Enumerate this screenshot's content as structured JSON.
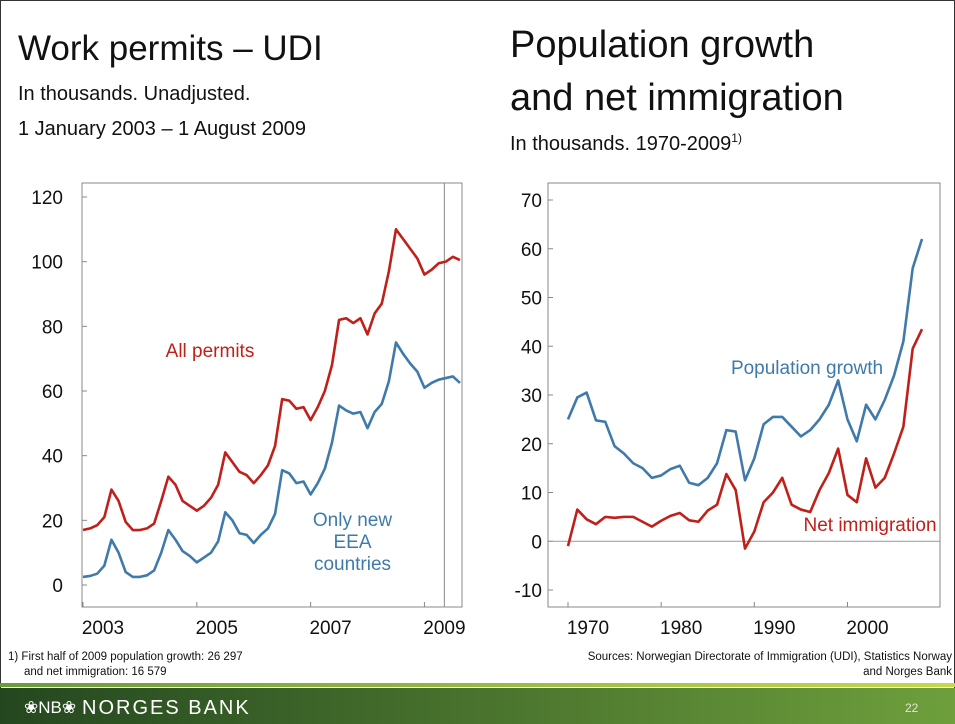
{
  "chart_data": [
    {
      "type": "line",
      "title": [
        "Work permits – UDI"
      ],
      "subtitle": [
        "In thousands. Unadjusted.",
        "1 January 2003 – 1 August 2009"
      ],
      "x": [
        2003,
        2003.125,
        2003.25,
        2003.375,
        2003.5,
        2003.625,
        2003.75,
        2003.875,
        2004,
        2004.125,
        2004.25,
        2004.375,
        2004.5,
        2004.625,
        2004.75,
        2004.875,
        2005,
        2005.125,
        2005.25,
        2005.375,
        2005.5,
        2005.625,
        2005.75,
        2005.875,
        2006,
        2006.125,
        2006.25,
        2006.375,
        2006.5,
        2006.625,
        2006.75,
        2006.875,
        2007,
        2007.125,
        2007.25,
        2007.375,
        2007.5,
        2007.625,
        2007.75,
        2007.875,
        2008,
        2008.125,
        2008.25,
        2008.375,
        2008.5,
        2008.625,
        2008.75,
        2008.875,
        2009,
        2009.125,
        2009.25,
        2009.375,
        2009.5,
        2009.625
      ],
      "xlim": [
        2003,
        2009.625
      ],
      "xticks": [
        2003,
        2005,
        2007,
        2009
      ],
      "ylim": [
        0,
        120
      ],
      "yticks": [
        0,
        20,
        40,
        60,
        80,
        100,
        120
      ],
      "reference_line_x": 2009.35,
      "series": [
        {
          "name": "All permits",
          "color": "#c0201a",
          "values": [
            17,
            17.5,
            18.5,
            21,
            29.5,
            26,
            19.5,
            17,
            17,
            17.5,
            19,
            26,
            33.5,
            31,
            26,
            24.5,
            23,
            24.5,
            27,
            31,
            41,
            38,
            35,
            34,
            31.5,
            34,
            37,
            43,
            57.5,
            57,
            54.5,
            55,
            51,
            55,
            60,
            68,
            82,
            82.5,
            81,
            82.5,
            77.5,
            84,
            87,
            97,
            110,
            107,
            104,
            101,
            96,
            97.5,
            99.5,
            100,
            101.5,
            100.5
          ]
        },
        {
          "name": "Only new EEA countries",
          "color": "#3f7aab",
          "values": [
            2.5,
            2.8,
            3.5,
            6,
            14,
            10,
            4,
            2.5,
            2.5,
            3,
            4.5,
            10,
            17,
            14,
            10.5,
            9,
            7,
            8.5,
            10,
            13.5,
            22.5,
            20,
            16,
            15.5,
            13,
            15.5,
            17.5,
            22,
            35.5,
            34.5,
            31.5,
            32,
            28,
            31.5,
            36,
            44,
            55.5,
            54,
            53,
            53.5,
            48.5,
            53.5,
            56,
            63,
            75,
            71.5,
            68.5,
            66,
            61,
            62.5,
            63.5,
            64,
            64.5,
            62.5
          ]
        }
      ]
    },
    {
      "type": "line",
      "title": [
        "Population growth",
        "and net immigration"
      ],
      "subtitle": [
        "In thousands. 1970-2009"
      ],
      "subtitle_note": "1)",
      "x": [
        1970,
        1971,
        1972,
        1973,
        1974,
        1975,
        1976,
        1977,
        1978,
        1979,
        1980,
        1981,
        1982,
        1983,
        1984,
        1985,
        1986,
        1987,
        1988,
        1989,
        1990,
        1991,
        1992,
        1993,
        1994,
        1995,
        1996,
        1997,
        1998,
        1999,
        2000,
        2001,
        2002,
        2003,
        2004,
        2005,
        2006,
        2007,
        2008
      ],
      "xlim": [
        1970,
        2008
      ],
      "xticks": [
        1970,
        1980,
        1990,
        2000
      ],
      "ylim": [
        -10,
        70
      ],
      "yticks": [
        -10,
        0,
        10,
        20,
        30,
        40,
        50,
        60,
        70
      ],
      "series": [
        {
          "name": "Population growth",
          "color": "#3f7aab",
          "values": [
            25,
            29.5,
            30.5,
            24.8,
            24.5,
            19.5,
            18,
            16,
            15,
            13,
            13.5,
            14.8,
            15.5,
            12,
            11.5,
            13,
            16,
            22.8,
            22.5,
            12.5,
            17,
            24,
            25.5,
            25.5,
            23.5,
            21.5,
            22.8,
            25,
            28,
            33,
            25,
            20.5,
            28,
            25,
            29,
            34,
            41,
            56,
            62
          ]
        },
        {
          "name": "Net immigration",
          "color": "#c0201a",
          "values": [
            -1,
            6.5,
            4.5,
            3.5,
            5,
            4.8,
            5,
            5,
            4,
            3,
            4.2,
            5.2,
            5.8,
            4.3,
            4,
            6.3,
            7.5,
            13.8,
            10.5,
            -1.5,
            2,
            8,
            10,
            13,
            7.5,
            6.5,
            6,
            10.5,
            14,
            19,
            9.5,
            8,
            17,
            11,
            13,
            18,
            23.5,
            39.5,
            43.5
          ]
        }
      ]
    }
  ],
  "footnote": [
    "1)  First half of 2009 population growth: 26 297",
    "and net immigration: 16 579"
  ],
  "sources": [
    "Sources: Norwegian Directorate of Immigration (UDI), Statistics Norway",
    "and Norges Bank"
  ],
  "footer": {
    "logo": "❀NB❀",
    "bank": "NORGES BANK",
    "page": "22"
  }
}
